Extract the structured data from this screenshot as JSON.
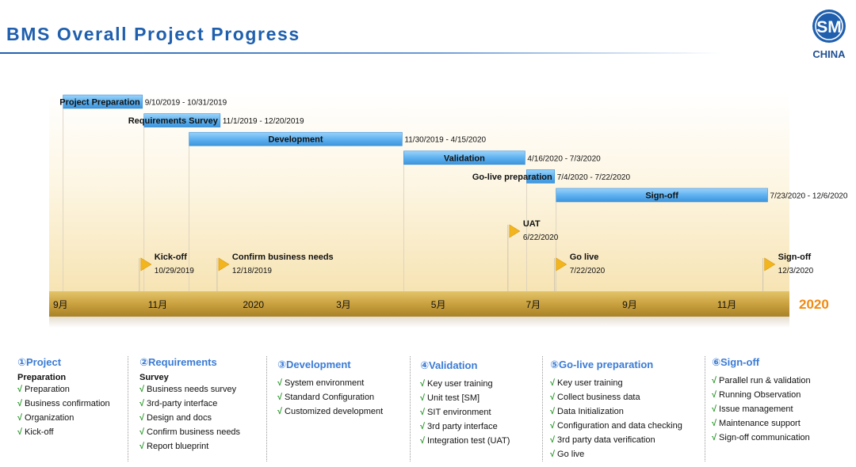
{
  "header": {
    "title": "BMS Overall Project Progress",
    "logo_text": "CHINA",
    "logo_monogram": "SM"
  },
  "colors": {
    "title_blue": "#1f5fae",
    "bar_blue": "#5fb2f0",
    "axis_gold": "#c9a23c",
    "milestone_flag": "#f2b51d",
    "year_orange": "#f08a12",
    "check_green": "#2b9a2b",
    "column_title_blue": "#3a7bd5"
  },
  "chart_data": {
    "type": "gantt",
    "axis": {
      "ticks": [
        "9月",
        "11月",
        "2020",
        "3月",
        "5月",
        "7月",
        "9月",
        "11月"
      ],
      "year_label": "2020"
    },
    "tasks": [
      {
        "name": "Project Preparation",
        "start": "2019-09-10",
        "end": "2019-10-31",
        "dates": "9/10/2019 - 10/31/2019"
      },
      {
        "name": "Requirements Survey",
        "start": "2019-11-01",
        "end": "2019-12-20",
        "dates": "11/1/2019 - 12/20/2019"
      },
      {
        "name": "Development",
        "start": "2019-11-30",
        "end": "2020-04-15",
        "dates": "11/30/2019 - 4/15/2020"
      },
      {
        "name": "Validation",
        "start": "2020-04-16",
        "end": "2020-07-03",
        "dates": "4/16/2020 - 7/3/2020"
      },
      {
        "name": "Go-live preparation",
        "start": "2020-07-04",
        "end": "2020-07-22",
        "dates": "7/4/2020 - 7/22/2020"
      },
      {
        "name": "Sign-off",
        "start": "2020-07-23",
        "end": "2020-12-06",
        "dates": "7/23/2020 - 12/6/2020"
      }
    ],
    "milestones": [
      {
        "name": "Kick-off",
        "date": "2019-10-29",
        "label": "10/29/2019"
      },
      {
        "name": "Confirm business needs",
        "date": "2019-12-18",
        "label": "12/18/2019"
      },
      {
        "name": "UAT",
        "date": "2020-06-22",
        "label": "6/22/2020"
      },
      {
        "name": "Go live",
        "date": "2020-07-22",
        "label": "7/22/2020"
      },
      {
        "name": "Sign-off",
        "date": "2020-12-03",
        "label": "12/3/2020"
      }
    ]
  },
  "columns": [
    {
      "title": "①Project",
      "subtitle": "Preparation",
      "items": [
        "Preparation",
        "Business confirmation",
        "Organization",
        "Kick-off"
      ]
    },
    {
      "title": "②Requirements",
      "subtitle": "Survey",
      "items": [
        "Business needs survey",
        "3rd-party interface",
        "Design and docs",
        "Confirm business needs",
        "Report blueprint"
      ]
    },
    {
      "title": "③Development",
      "subtitle": "",
      "items": [
        "System environment",
        "Standard Configuration",
        "Customized development"
      ]
    },
    {
      "title": "④Validation",
      "subtitle": "",
      "items": [
        "Key user training",
        "Unit test [SM]",
        "SIT environment",
        "3rd party interface",
        "Integration test (UAT)"
      ]
    },
    {
      "title": "⑤Go-live preparation",
      "subtitle": "",
      "items": [
        "Key user training",
        "Collect business data",
        "Data Initialization",
        "Configuration and data checking",
        "3rd party data verification",
        "Go live"
      ]
    },
    {
      "title": "⑥Sign-off",
      "subtitle": "",
      "items": [
        "Parallel run & validation",
        "Running Observation",
        "Issue management",
        "Maintenance support",
        "Sign-off communication"
      ]
    }
  ],
  "check_mark": "√"
}
